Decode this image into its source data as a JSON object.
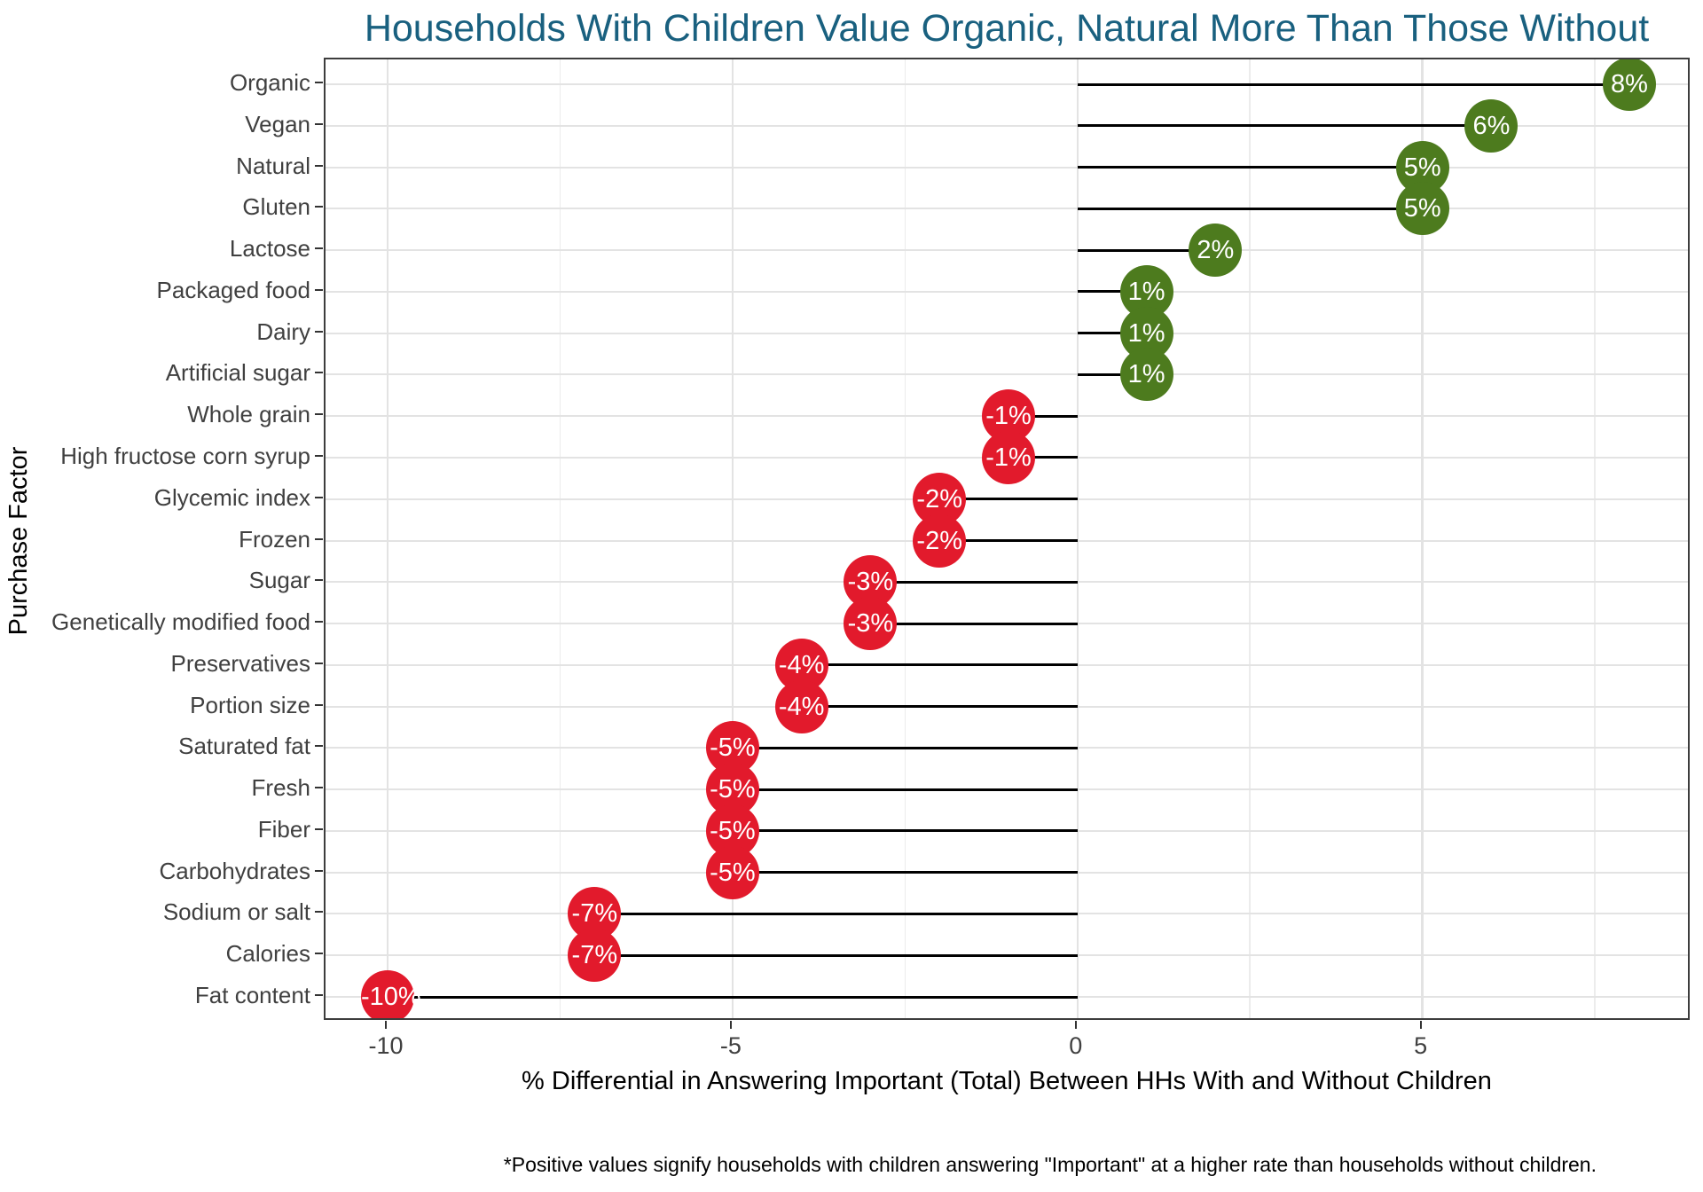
{
  "title": {
    "text": "Households With Children Value Organic, Natural More Than Those Without",
    "color": "#19607f"
  },
  "footnote": "*Positive values signify households with children answering \"Important\" at a higher rate than households without children.",
  "chart_data": {
    "type": "bar",
    "subtype": "horizontal-lollipop",
    "title": "Households With Children Value Organic, Natural More Than Those Without",
    "xlabel": "% Differential in Answering Important (Total) Between HHs With and Without Children",
    "ylabel": "Purchase Factor",
    "categories": [
      "Organic",
      "Vegan",
      "Natural",
      "Gluten",
      "Lactose",
      "Packaged food",
      "Dairy",
      "Artificial sugar",
      "Whole grain",
      "High fructose corn syrup",
      "Glycemic index",
      "Frozen",
      "Sugar",
      "Genetically modified food",
      "Preservatives",
      "Portion size",
      "Saturated fat",
      "Fresh",
      "Fiber",
      "Carbohydrates",
      "Sodium or salt",
      "Calories",
      "Fat content"
    ],
    "values": [
      8,
      6,
      5,
      5,
      2,
      1,
      1,
      1,
      -1,
      -1,
      -2,
      -2,
      -3,
      -3,
      -4,
      -4,
      -5,
      -5,
      -5,
      -5,
      -7,
      -7,
      -10
    ],
    "point_labels": [
      "8%",
      "6%",
      "5%",
      "5%",
      "2%",
      "1%",
      "1%",
      "1%",
      "-1%",
      "-1%",
      "-2%",
      "-2%",
      "-3%",
      "-3%",
      "-4%",
      "-4%",
      "-5%",
      "-5%",
      "-5%",
      "-5%",
      "-7%",
      "-7%",
      "-10%"
    ],
    "xlim": [
      -10.9,
      8.9
    ],
    "x_major_ticks": [
      -10,
      -5,
      0,
      5
    ],
    "x_major_tick_labels": [
      "-10",
      "-5",
      "0",
      "5"
    ],
    "x_minor_ticks": [
      -7.5,
      -2.5,
      2.5,
      7.5
    ],
    "grid": true,
    "legend": false,
    "positive_color": "#4d7b1e",
    "negative_color": "#e21a2c",
    "point_label_color": "#ffffff",
    "stem_color": "#000000",
    "grid_color": "#e3e3e3",
    "panel_border_color": "#3d3d3d",
    "axis_text_color": "#404040"
  }
}
